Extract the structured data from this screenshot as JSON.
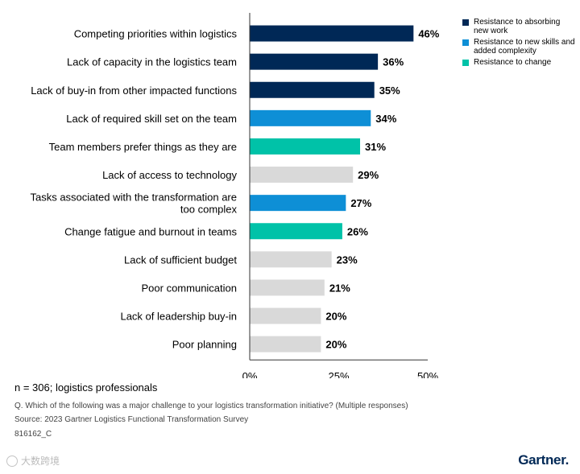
{
  "chart_data": {
    "type": "bar",
    "orientation": "horizontal",
    "categories": [
      "Competing priorities within logistics",
      "Lack of capacity in the logistics team",
      "Lack of buy-in from other impacted functions",
      "Lack of required skill set on the team",
      "Team members prefer things as they are",
      "Lack of access to technology",
      "Tasks associated with the transformation are too complex",
      "Change fatigue and burnout in teams",
      "Lack of sufficient budget",
      "Poor communication",
      "Lack of leadership buy-in",
      "Poor planning"
    ],
    "category_lines": [
      [
        "Competing priorities within logistics"
      ],
      [
        "Lack of capacity in the logistics team"
      ],
      [
        "Lack of buy-in from other impacted functions"
      ],
      [
        "Lack of required skill set on the team"
      ],
      [
        "Team members prefer things as they are"
      ],
      [
        "Lack of access to technology"
      ],
      [
        "Tasks associated with the transformation are",
        "too complex"
      ],
      [
        "Change fatigue and burnout in teams"
      ],
      [
        "Lack of sufficient budget"
      ],
      [
        "Poor communication"
      ],
      [
        "Lack of leadership buy-in"
      ],
      [
        "Poor planning"
      ]
    ],
    "values": [
      46,
      36,
      35,
      34,
      31,
      29,
      27,
      26,
      23,
      21,
      20,
      20
    ],
    "value_labels": [
      "46%",
      "36%",
      "35%",
      "34%",
      "31%",
      "29%",
      "27%",
      "26%",
      "23%",
      "21%",
      "20%",
      "20%"
    ],
    "bar_groups": [
      "absorbing",
      "absorbing",
      "absorbing",
      "skills",
      "change",
      "other",
      "skills",
      "change",
      "other",
      "other",
      "other",
      "other"
    ],
    "colors": {
      "absorbing": "#002856",
      "skills": "#0e8fd6",
      "change": "#00c2a8",
      "other": "#d9d9d9",
      "axis": "#333333"
    },
    "xlim": [
      0,
      50
    ],
    "x_ticks": [
      0,
      25,
      50
    ],
    "x_tick_labels": [
      "0%",
      "25%",
      "50%"
    ],
    "grid": false,
    "legend_position": "top-right",
    "legend": [
      {
        "key": "absorbing",
        "label": "Resistance to absorbing new work"
      },
      {
        "key": "skills",
        "label": "Resistance to new skills and added complexity"
      },
      {
        "key": "change",
        "label": "Resistance to change"
      }
    ]
  },
  "footer": {
    "n_note": "n = 306; logistics professionals",
    "question": "Q. Which of the following was a major challenge to your logistics transformation initiative? (Multiple responses)",
    "source": "Source: 2023 Gartner Logistics Functional Transformation Survey",
    "code": "816162_C"
  },
  "watermark": "大数跨境",
  "brand": "Gartner."
}
